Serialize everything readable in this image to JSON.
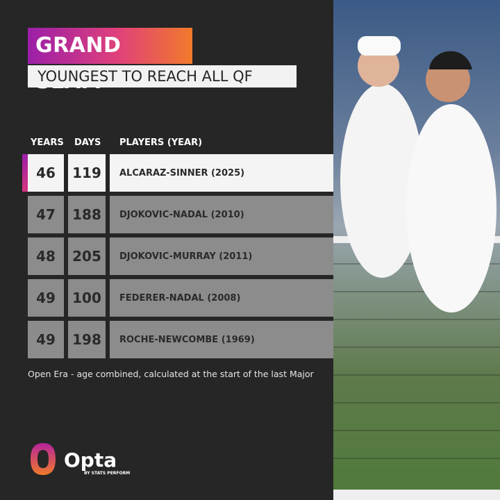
{
  "header": {
    "title": "GRAND SLAM",
    "subtitle": "YOUNGEST TO REACH ALL QF"
  },
  "table": {
    "columns": [
      "YEARS",
      "DAYS",
      "PLAYERS (YEAR)"
    ],
    "rows": [
      [
        46,
        119,
        "ALCARAZ-SINNER (2025)"
      ],
      [
        47,
        188,
        "DJOKOVIC-NADAL (2010)"
      ],
      [
        48,
        205,
        "DJOKOVIC-MURRAY (2011)"
      ],
      [
        49,
        100,
        "FEDERER-NADAL (2008)"
      ],
      [
        49,
        198,
        "ROCHE-NEWCOMBE (1969)"
      ]
    ]
  },
  "footnote": "Open Era - age combined, calculated at the start of the last Major",
  "logo": {
    "name": "Opta",
    "tagline": "BY STATS PERFORM"
  }
}
